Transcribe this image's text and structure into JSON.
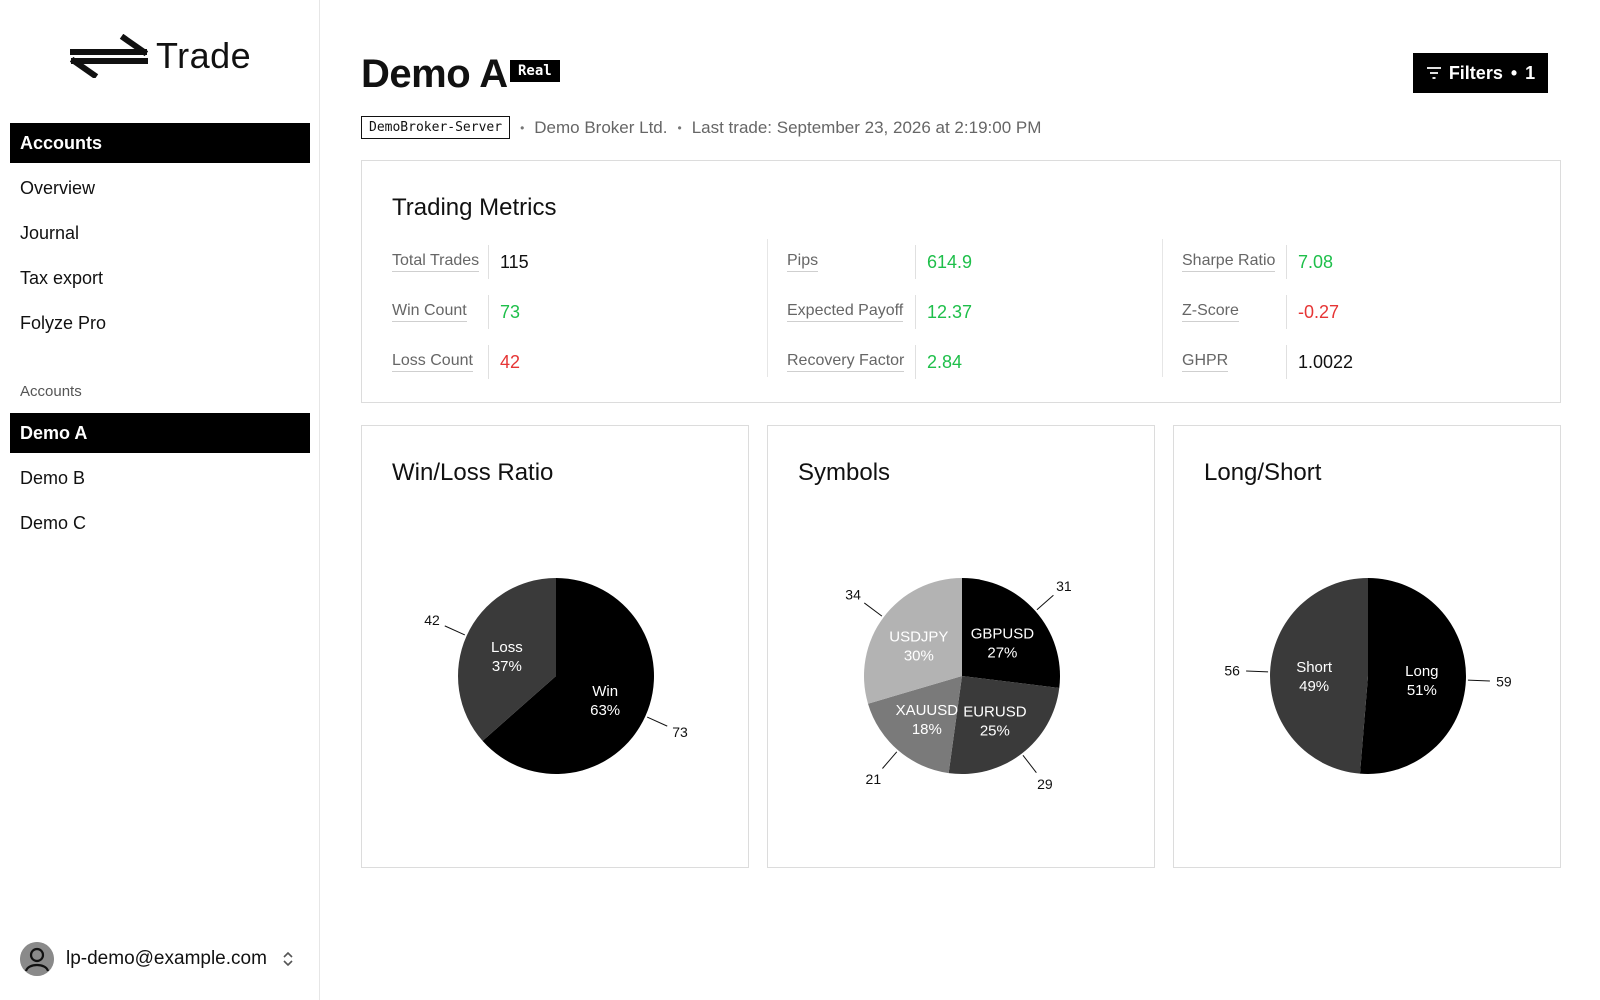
{
  "sidebar": {
    "logo_text": "Trade",
    "nav": [
      {
        "label": "Accounts",
        "active": true
      },
      {
        "label": "Overview",
        "active": false
      },
      {
        "label": "Journal",
        "active": false
      },
      {
        "label": "Tax export",
        "active": false
      },
      {
        "label": "Folyze Pro",
        "active": false
      }
    ],
    "section_label": "Accounts",
    "accounts": [
      {
        "label": "Demo A",
        "active": true
      },
      {
        "label": "Demo B",
        "active": false
      },
      {
        "label": "Demo C",
        "active": false
      }
    ],
    "user_email": "lp-demo@example.com"
  },
  "header": {
    "title": "Demo A",
    "badge": "Real",
    "filters_label": "Filters",
    "filters_count": "1",
    "server": "DemoBroker-Server",
    "broker": "Demo Broker Ltd.",
    "last_trade": "Last trade: September 23, 2026 at 2:19:00 PM"
  },
  "metrics": {
    "title": "Trading Metrics",
    "columns": [
      [
        {
          "label": "Total Trades",
          "value": "115",
          "tone": "neu"
        },
        {
          "label": "Win Count",
          "value": "73",
          "tone": "pos"
        },
        {
          "label": "Loss Count",
          "value": "42",
          "tone": "neg"
        }
      ],
      [
        {
          "label": "Pips",
          "value": "614.9",
          "tone": "pos"
        },
        {
          "label": "Expected Payoff",
          "value": "12.37",
          "tone": "pos"
        },
        {
          "label": "Recovery Factor",
          "value": "2.84",
          "tone": "pos"
        }
      ],
      [
        {
          "label": "Sharpe Ratio",
          "value": "7.08",
          "tone": "pos"
        },
        {
          "label": "Z-Score",
          "value": "-0.27",
          "tone": "neg"
        },
        {
          "label": "GHPR",
          "value": "1.0022",
          "tone": "neu"
        }
      ]
    ]
  },
  "colors": {
    "positive": "#1ebf4a",
    "negative": "#e63535",
    "slice_black": "#000000",
    "slice_dark": "#3a3a3a",
    "slice_mid": "#7a7a7a",
    "slice_light": "#b3b3b3"
  },
  "chart_data": [
    {
      "type": "pie",
      "title": "Win/Loss Ratio",
      "slices": [
        {
          "label": "Win",
          "value": 73,
          "percent": "63%",
          "color": "#000000"
        },
        {
          "label": "Loss",
          "value": 42,
          "percent": "37%",
          "color": "#3a3a3a"
        }
      ]
    },
    {
      "type": "pie",
      "title": "Symbols",
      "slices": [
        {
          "label": "GBPUSD",
          "value": 31,
          "percent": "27%",
          "color": "#000000"
        },
        {
          "label": "EURUSD",
          "value": 29,
          "percent": "25%",
          "color": "#3a3a3a"
        },
        {
          "label": "XAUUSD",
          "value": 21,
          "percent": "18%",
          "color": "#7a7a7a"
        },
        {
          "label": "USDJPY",
          "value": 34,
          "percent": "30%",
          "color": "#b3b3b3"
        }
      ]
    },
    {
      "type": "pie",
      "title": "Long/Short",
      "slices": [
        {
          "label": "Long",
          "value": 59,
          "percent": "51%",
          "color": "#000000"
        },
        {
          "label": "Short",
          "value": 56,
          "percent": "49%",
          "color": "#3a3a3a"
        }
      ]
    }
  ]
}
